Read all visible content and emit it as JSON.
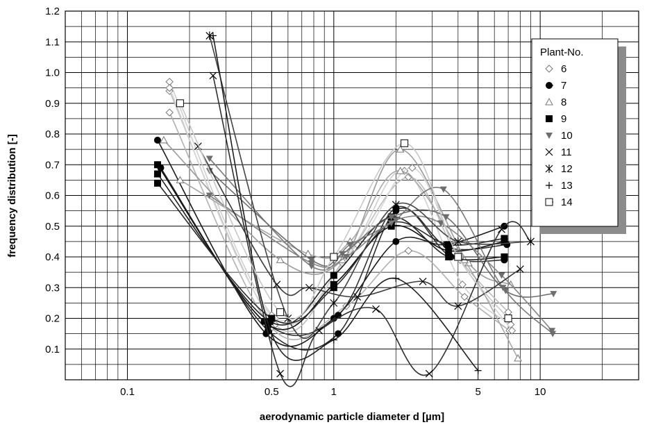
{
  "chart_data": {
    "type": "line",
    "title": "",
    "xlabel": "aerodynamic particle diameter d [µm]",
    "ylabel": "frequency distribution [-]",
    "x_scale": "log",
    "xlim": [
      0.05,
      30
    ],
    "ylim": [
      0.0,
      1.2
    ],
    "grid": true,
    "x_tick_labels": [
      "0.1",
      "0.5",
      "1",
      "5",
      "10"
    ],
    "x_tick_values": [
      0.1,
      0.5,
      1,
      5,
      10
    ],
    "y_tick_labels": [
      "0.1",
      "0.2",
      "0.3",
      "0.4",
      "0.5",
      "0.6",
      "0.7",
      "0.8",
      "0.9",
      "1.0",
      "1.1",
      "1.2"
    ],
    "y_tick_values": [
      0.1,
      0.2,
      0.3,
      0.4,
      0.5,
      0.6,
      0.7,
      0.8,
      0.9,
      1.0,
      1.1,
      1.2
    ],
    "legend": {
      "title": "Plant-No.",
      "placement": "top-right",
      "entries": [
        "6",
        "7",
        "8",
        "9",
        "10",
        "11",
        "12",
        "13",
        "14"
      ]
    },
    "series": [
      {
        "name": "6",
        "marker": "diamond",
        "color": "#cfcfcf",
        "points": [
          [
            0.16,
            0.97
          ],
          [
            0.52,
            0.2
          ],
          [
            1.2,
            0.42
          ],
          [
            2.2,
            0.68
          ],
          [
            4.2,
            0.31
          ],
          [
            7.2,
            0.18
          ]
        ]
      },
      {
        "name": "6",
        "marker": "diamond",
        "color": "#bdbdbd",
        "points": [
          [
            0.16,
            0.94
          ],
          [
            0.52,
            0.18
          ],
          [
            1.1,
            0.38
          ],
          [
            2.3,
            0.66
          ],
          [
            4.0,
            0.4
          ],
          [
            7.0,
            0.22
          ]
        ]
      },
      {
        "name": "6",
        "marker": "diamond",
        "color": "#b0b0b0",
        "points": [
          [
            0.16,
            0.87
          ],
          [
            0.5,
            0.17
          ],
          [
            1.15,
            0.24
          ],
          [
            2.3,
            0.42
          ],
          [
            4.3,
            0.27
          ],
          [
            7.1,
            0.16
          ]
        ]
      },
      {
        "name": "6",
        "marker": "diamond",
        "color": "#d6d6d6",
        "points": [
          [
            0.16,
            0.95
          ],
          [
            0.5,
            0.21
          ],
          [
            1.3,
            0.44
          ],
          [
            2.4,
            0.69
          ],
          [
            4.1,
            0.39
          ],
          [
            7.3,
            0.16
          ]
        ]
      },
      {
        "name": "7",
        "marker": "circle",
        "color": "#1a1a1a",
        "points": [
          [
            0.14,
            0.78
          ],
          [
            0.47,
            0.15
          ],
          [
            1.0,
            0.2
          ],
          [
            2.0,
            0.45
          ],
          [
            3.5,
            0.44
          ],
          [
            6.7,
            0.5
          ]
        ]
      },
      {
        "name": "7",
        "marker": "circle",
        "color": "#2a2a2a",
        "points": [
          [
            0.145,
            0.69
          ],
          [
            0.48,
            0.16
          ],
          [
            1.05,
            0.15
          ],
          [
            2.0,
            0.55
          ],
          [
            3.6,
            0.43
          ],
          [
            6.9,
            0.44
          ]
        ]
      },
      {
        "name": "7",
        "marker": "circle",
        "color": "#333333",
        "points": [
          [
            0.14,
            0.7
          ],
          [
            0.46,
            0.19
          ],
          [
            1.05,
            0.21
          ],
          [
            2.0,
            0.56
          ],
          [
            3.7,
            0.4
          ],
          [
            6.7,
            0.39
          ]
        ]
      },
      {
        "name": "8",
        "marker": "triangle",
        "color": "#9a9a9a",
        "points": [
          [
            0.15,
            0.78
          ],
          [
            0.55,
            0.39
          ],
          [
            1.1,
            0.39
          ],
          [
            2.1,
            0.75
          ],
          [
            4.5,
            0.38
          ],
          [
            7.2,
            0.31
          ]
        ]
      },
      {
        "name": "8",
        "marker": "triangle",
        "color": "#a8a8a8",
        "points": [
          [
            0.18,
            0.65
          ],
          [
            0.75,
            0.41
          ],
          [
            1.2,
            0.45
          ],
          [
            2.1,
            0.68
          ],
          [
            4.3,
            0.39
          ],
          [
            7.8,
            0.07
          ]
        ]
      },
      {
        "name": "9",
        "marker": "square",
        "color": "#111111",
        "points": [
          [
            0.14,
            0.7
          ],
          [
            0.48,
            0.18
          ],
          [
            1.0,
            0.31
          ],
          [
            1.9,
            0.5
          ],
          [
            3.6,
            0.42
          ],
          [
            6.7,
            0.45
          ]
        ]
      },
      {
        "name": "9",
        "marker": "square",
        "color": "#222222",
        "points": [
          [
            0.14,
            0.67
          ],
          [
            0.49,
            0.19
          ],
          [
            1.0,
            0.34
          ],
          [
            1.9,
            0.53
          ],
          [
            3.6,
            0.4
          ],
          [
            6.7,
            0.4
          ]
        ]
      },
      {
        "name": "9",
        "marker": "square",
        "color": "#2b2b2b",
        "points": [
          [
            0.14,
            0.64
          ],
          [
            0.5,
            0.2
          ],
          [
            1.0,
            0.3
          ],
          [
            1.9,
            0.51
          ],
          [
            3.6,
            0.44
          ],
          [
            6.7,
            0.46
          ]
        ]
      },
      {
        "name": "10",
        "marker": "triangle-down",
        "color": "#7a7a7a",
        "points": [
          [
            0.25,
            0.72
          ],
          [
            0.78,
            0.37
          ],
          [
            1.2,
            0.44
          ],
          [
            1.9,
            0.51
          ],
          [
            3.4,
            0.62
          ],
          [
            6.6,
            0.3
          ],
          [
            11.5,
            0.15
          ]
        ]
      },
      {
        "name": "10",
        "marker": "triangle-down",
        "color": "#6e6e6e",
        "points": [
          [
            0.25,
            0.68
          ],
          [
            0.78,
            0.39
          ],
          [
            1.1,
            0.41
          ],
          [
            1.9,
            0.53
          ],
          [
            3.5,
            0.53
          ],
          [
            6.8,
            0.29
          ],
          [
            11.6,
            0.28
          ]
        ]
      },
      {
        "name": "10",
        "marker": "triangle-down",
        "color": "#858585",
        "points": [
          [
            0.25,
            0.6
          ],
          [
            0.78,
            0.38
          ],
          [
            1.15,
            0.4
          ],
          [
            2.0,
            0.52
          ],
          [
            3.3,
            0.51
          ],
          [
            6.5,
            0.34
          ],
          [
            11.4,
            0.16
          ]
        ]
      },
      {
        "name": "11",
        "marker": "x",
        "color": "#3a3a3a",
        "points": [
          [
            0.22,
            0.76
          ],
          [
            0.53,
            0.31
          ],
          [
            0.76,
            0.3
          ],
          [
            1.3,
            0.27
          ],
          [
            2.7,
            0.32
          ],
          [
            4.0,
            0.24
          ],
          [
            8.0,
            0.36
          ]
        ]
      },
      {
        "name": "11",
        "marker": "x",
        "color": "#2f2f2f",
        "points": [
          [
            0.26,
            0.99
          ],
          [
            0.55,
            0.02
          ],
          [
            0.85,
            0.16
          ],
          [
            1.6,
            0.23
          ],
          [
            2.9,
            0.02
          ],
          [
            6.5,
            0.49
          ],
          [
            9.0,
            0.45
          ]
        ]
      },
      {
        "name": "12",
        "marker": "asterisk",
        "color": "#444444",
        "points": [
          [
            0.25,
            1.12
          ],
          [
            0.6,
            0.2
          ],
          [
            1.0,
            0.25
          ],
          [
            2.0,
            0.57
          ],
          [
            4.0,
            0.45
          ],
          [
            9.0,
            0.45
          ]
        ]
      },
      {
        "name": "13",
        "marker": "plus",
        "color": "#1f1f1f",
        "points": [
          [
            0.26,
            1.12
          ],
          [
            0.5,
            0.15
          ],
          [
            1.0,
            0.13
          ],
          [
            2.0,
            0.33
          ],
          [
            5.0,
            0.03
          ]
        ]
      },
      {
        "name": "14",
        "marker": "square-open",
        "color": "#c8c8c8",
        "points": [
          [
            0.18,
            0.9
          ],
          [
            0.55,
            0.22
          ],
          [
            1.0,
            0.4
          ],
          [
            2.2,
            0.77
          ],
          [
            4.0,
            0.4
          ],
          [
            7.0,
            0.2
          ]
        ]
      }
    ]
  }
}
